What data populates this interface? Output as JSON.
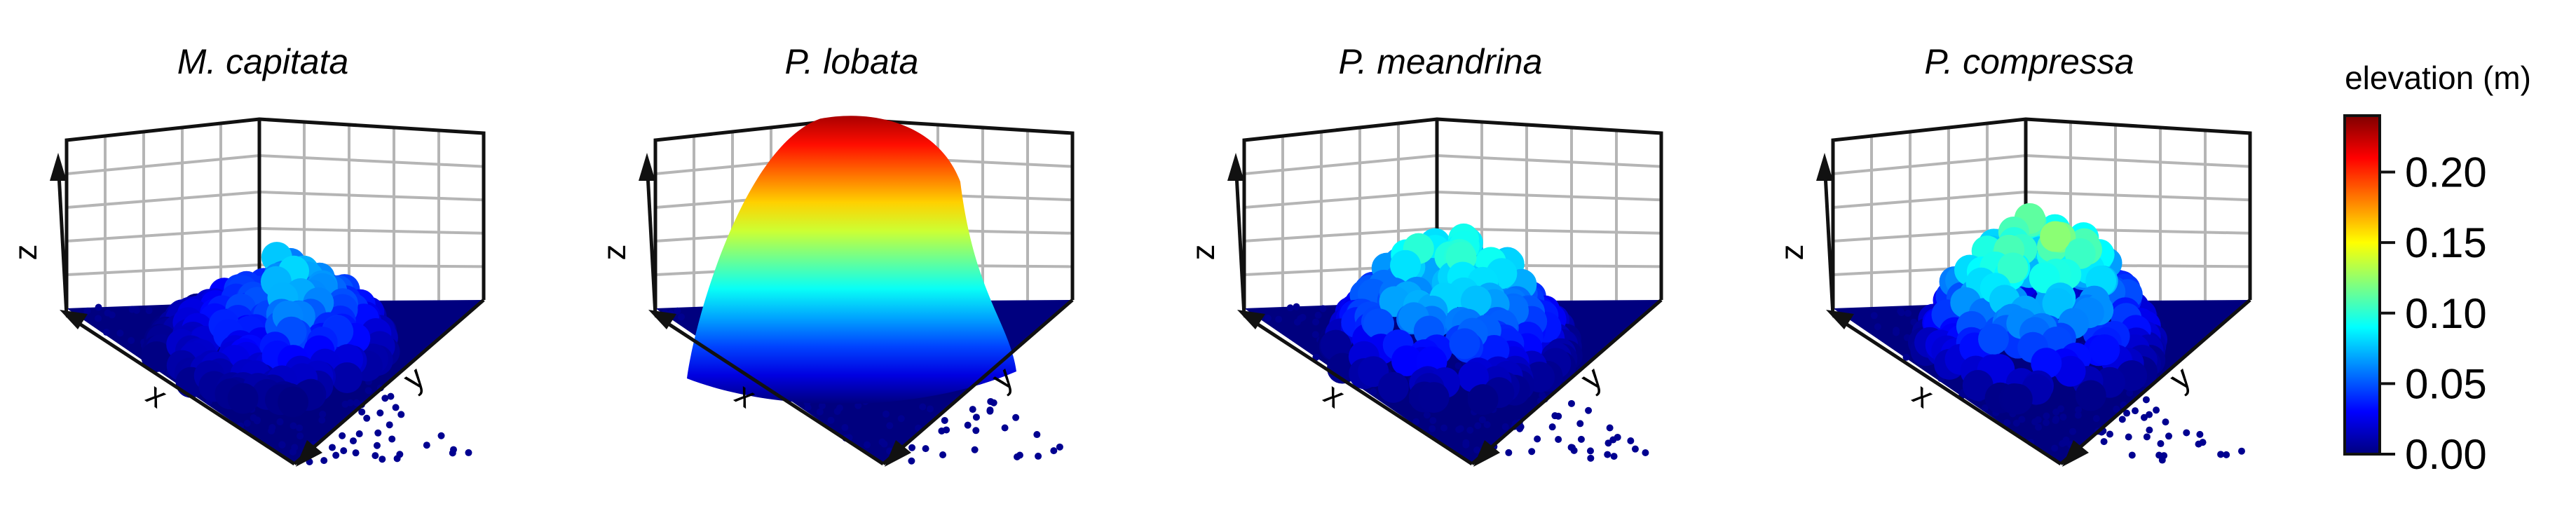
{
  "chart_data": [
    {
      "type": "scatter",
      "title": "M. capitata",
      "xlabel": "x",
      "ylabel": "y",
      "zlabel": "z",
      "zlim": [
        0,
        0.24
      ],
      "grid": true,
      "surface": {
        "peak_elevation_m": 0.09,
        "shape": "low irregular mound"
      }
    },
    {
      "type": "scatter",
      "title": "P. lobata",
      "xlabel": "x",
      "ylabel": "y",
      "zlabel": "z",
      "zlim": [
        0,
        0.24
      ],
      "grid": true,
      "surface": {
        "peak_elevation_m": 0.23,
        "shape": "tall smooth dome"
      }
    },
    {
      "type": "scatter",
      "title": "P. meandrina",
      "xlabel": "x",
      "ylabel": "y",
      "zlabel": "z",
      "zlim": [
        0,
        0.24
      ],
      "grid": true,
      "surface": {
        "peak_elevation_m": 0.11,
        "shape": "bumpy branching mound"
      }
    },
    {
      "type": "scatter",
      "title": "P. compressa",
      "xlabel": "x",
      "ylabel": "y",
      "zlabel": "z",
      "zlim": [
        0,
        0.24
      ],
      "grid": true,
      "surface": {
        "peak_elevation_m": 0.13,
        "shape": "finger-like branching mound"
      }
    }
  ],
  "colorbar": {
    "title": "elevation (m)",
    "ticks": [
      "0.00",
      "0.05",
      "0.10",
      "0.15",
      "0.20"
    ],
    "tick_values": [
      0,
      0.05,
      0.1,
      0.15,
      0.2
    ],
    "range": [
      0,
      0.24
    ],
    "colors": [
      "#00007f",
      "#0000ff",
      "#007fff",
      "#00ffff",
      "#7fff7f",
      "#ffff00",
      "#ff7f00",
      "#ff0000",
      "#7f0000"
    ]
  }
}
